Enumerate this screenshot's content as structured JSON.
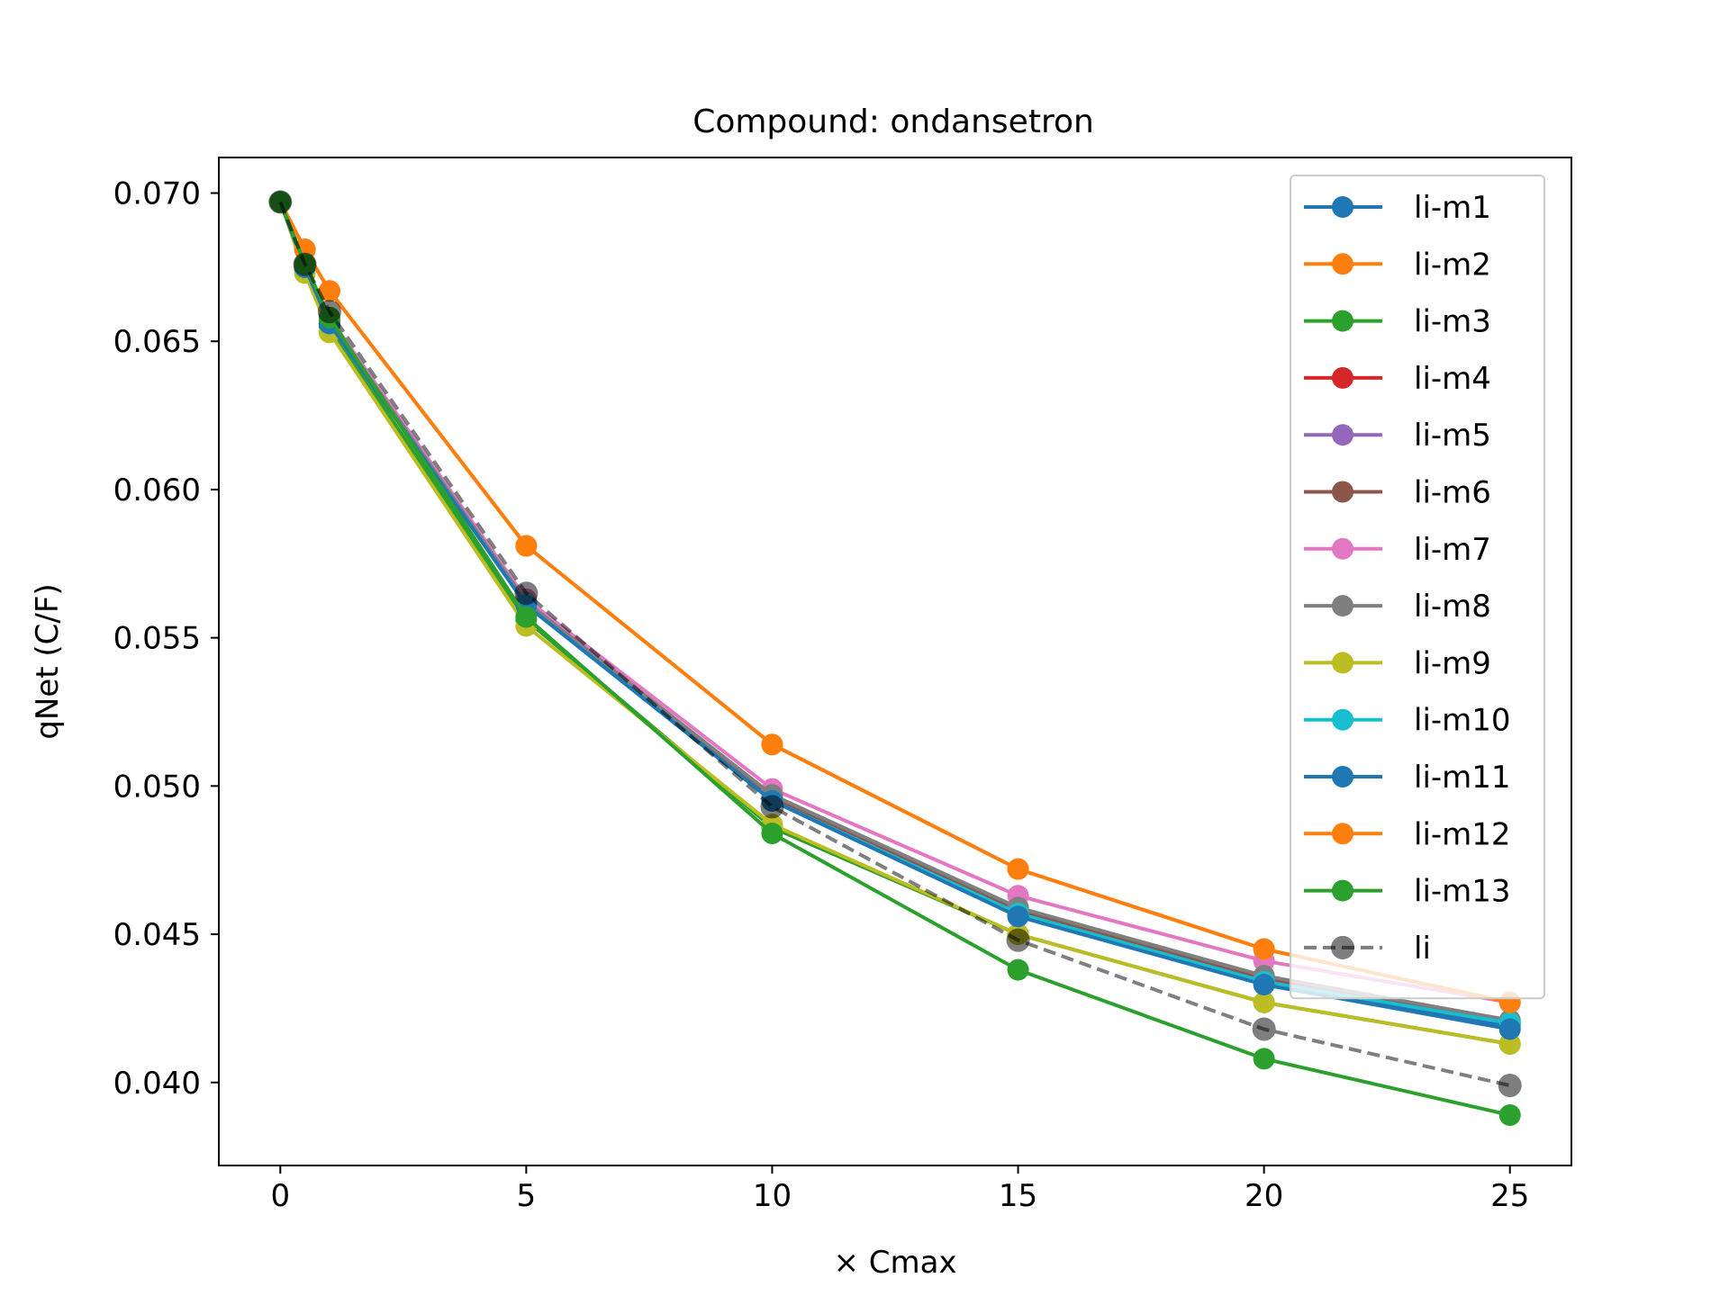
{
  "chart_data": {
    "type": "line",
    "title": "Compound: ondansetron",
    "xlabel": "× Cmax",
    "ylabel": "qNet (C/F)",
    "xlim": [
      -1.25,
      26.25
    ],
    "ylim": [
      0.0372,
      0.0712
    ],
    "xticks": [
      0,
      5,
      10,
      15,
      20,
      25
    ],
    "yticks": [
      0.04,
      0.045,
      0.05,
      0.055,
      0.06,
      0.065,
      0.07
    ],
    "xtick_labels": [
      "0",
      "5",
      "10",
      "15",
      "20",
      "25"
    ],
    "ytick_labels": [
      "0.040",
      "0.045",
      "0.050",
      "0.055",
      "0.060",
      "0.065",
      "0.070"
    ],
    "grid": false,
    "legend_position": "upper right",
    "x": [
      0,
      0.5,
      1,
      5,
      10,
      15,
      20,
      25
    ],
    "series": [
      {
        "name": "li-m1",
        "color": "#1f77b4",
        "style": "solid",
        "values": [
          0.0697,
          0.0675,
          0.0656,
          0.0562,
          0.0495,
          0.0457,
          0.0434,
          0.0419
        ]
      },
      {
        "name": "li-m2",
        "color": "#ff7f0e",
        "style": "solid",
        "values": [
          0.0697,
          0.0681,
          0.0667,
          0.0581,
          0.0514,
          0.0472,
          0.0445,
          0.0427
        ]
      },
      {
        "name": "li-m3",
        "color": "#2ca02c",
        "style": "solid",
        "values": [
          0.0697,
          0.0674,
          0.0655,
          0.0556,
          0.0486,
          0.045,
          0.0427,
          0.0413
        ]
      },
      {
        "name": "li-m4",
        "color": "#d62728",
        "style": "solid",
        "values": [
          0.0697,
          0.0675,
          0.0656,
          0.0561,
          0.0496,
          0.0457,
          0.0434,
          0.042
        ]
      },
      {
        "name": "li-m5",
        "color": "#9467bd",
        "style": "solid",
        "values": [
          0.0697,
          0.0675,
          0.0656,
          0.0561,
          0.0496,
          0.0458,
          0.0435,
          0.042
        ]
      },
      {
        "name": "li-m6",
        "color": "#8c564b",
        "style": "solid",
        "values": [
          0.0697,
          0.0675,
          0.0657,
          0.0562,
          0.0496,
          0.0458,
          0.0435,
          0.042
        ]
      },
      {
        "name": "li-m7",
        "color": "#e377c2",
        "style": "solid",
        "values": [
          0.0697,
          0.0676,
          0.0658,
          0.0563,
          0.0499,
          0.0463,
          0.0441,
          0.0427
        ]
      },
      {
        "name": "li-m8",
        "color": "#7f7f7f",
        "style": "solid",
        "values": [
          0.0697,
          0.0675,
          0.0657,
          0.0562,
          0.0497,
          0.0459,
          0.0436,
          0.0421
        ]
      },
      {
        "name": "li-m9",
        "color": "#bcbd22",
        "style": "solid",
        "values": [
          0.0697,
          0.0673,
          0.0653,
          0.0554,
          0.0487,
          0.045,
          0.0427,
          0.0413
        ]
      },
      {
        "name": "li-m10",
        "color": "#17becf",
        "style": "solid",
        "values": [
          0.0697,
          0.0675,
          0.0656,
          0.0561,
          0.0495,
          0.0457,
          0.0434,
          0.042
        ]
      },
      {
        "name": "li-m11",
        "color": "#1f77b4",
        "style": "solid",
        "values": [
          0.0697,
          0.0675,
          0.0656,
          0.0561,
          0.0495,
          0.0456,
          0.0433,
          0.0418
        ]
      },
      {
        "name": "li-m12",
        "color": "#ff7f0e",
        "style": "solid",
        "values": [
          0.0697,
          0.0681,
          0.0667,
          0.0581,
          0.0514,
          0.0472,
          0.0445,
          0.0427
        ]
      },
      {
        "name": "li-m13",
        "color": "#2ca02c",
        "style": "solid",
        "values": [
          0.0697,
          0.0676,
          0.0658,
          0.0557,
          0.0484,
          0.0438,
          0.0408,
          0.0389
        ]
      },
      {
        "name": "li",
        "color": "#000000",
        "style": "dashed",
        "values": [
          0.0697,
          0.0676,
          0.066,
          0.0565,
          0.0493,
          0.0448,
          0.0418,
          0.0399
        ]
      }
    ]
  }
}
